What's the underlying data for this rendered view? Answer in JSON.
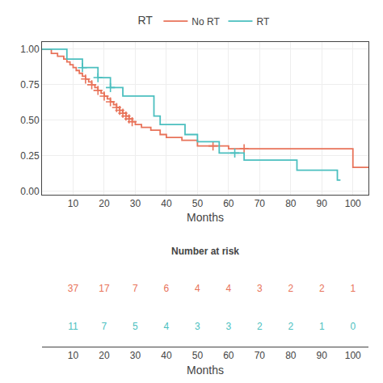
{
  "chart_data": {
    "type": "step",
    "xlabel": "Months",
    "legend_title": "RT",
    "xlim": [
      0,
      105
    ],
    "ylim": [
      -0.02,
      1.05
    ],
    "xticks": [
      10,
      20,
      30,
      40,
      50,
      60,
      70,
      80,
      90,
      100
    ],
    "yticks": [
      {
        "value": 0,
        "label": "0.00"
      },
      0.25,
      {
        "value": 0.5,
        "label": "0.50"
      },
      0.75,
      {
        "value": 1,
        "label": "1.00"
      }
    ],
    "grid": true,
    "series": [
      {
        "name": "No RT",
        "color": "#E8735A",
        "marker": "cross",
        "x": [
          0,
          3,
          5,
          7,
          8,
          9,
          10,
          11,
          12,
          13,
          14,
          15,
          16,
          17,
          18,
          19,
          20,
          21,
          22,
          23,
          24,
          25,
          26,
          27,
          28,
          29,
          30,
          32,
          35,
          38,
          40,
          45,
          50,
          60,
          70,
          95,
          100,
          105
        ],
        "values": [
          1.0,
          0.97,
          0.95,
          0.93,
          0.91,
          0.89,
          0.87,
          0.85,
          0.83,
          0.81,
          0.79,
          0.77,
          0.75,
          0.73,
          0.71,
          0.69,
          0.67,
          0.65,
          0.63,
          0.61,
          0.59,
          0.57,
          0.55,
          0.53,
          0.51,
          0.49,
          0.47,
          0.45,
          0.43,
          0.4,
          0.38,
          0.36,
          0.32,
          0.3,
          0.3,
          0.3,
          0.17,
          0.17
        ],
        "censor_x": [
          14,
          16,
          18,
          20,
          22,
          24,
          25,
          26,
          27,
          28,
          29,
          55,
          65
        ],
        "censor_values": [
          0.79,
          0.75,
          0.71,
          0.67,
          0.63,
          0.59,
          0.57,
          0.55,
          0.53,
          0.51,
          0.49,
          0.32,
          0.3
        ]
      },
      {
        "name": "RT",
        "color": "#4BBFBF",
        "marker": "cross",
        "x": [
          0,
          8,
          13,
          18,
          22,
          26,
          36,
          38,
          46,
          50,
          57,
          65,
          82,
          95,
          96
        ],
        "values": [
          1.0,
          0.93,
          0.87,
          0.8,
          0.73,
          0.67,
          0.53,
          0.47,
          0.4,
          0.35,
          0.27,
          0.22,
          0.15,
          0.08,
          0.08
        ],
        "censor_x": [
          13,
          18,
          22,
          62
        ],
        "censor_values": [
          0.87,
          0.8,
          0.73,
          0.27
        ]
      }
    ],
    "risk_table": {
      "title": "Number at risk",
      "xlabel": "Months",
      "x": [
        10,
        20,
        30,
        40,
        50,
        60,
        70,
        80,
        90,
        100
      ],
      "rows": [
        {
          "color": "#E8735A",
          "values": [
            37,
            17,
            7,
            6,
            4,
            4,
            3,
            2,
            2,
            1
          ]
        },
        {
          "color": "#4BBFBF",
          "values": [
            11,
            7,
            5,
            4,
            3,
            3,
            2,
            2,
            1,
            0
          ]
        }
      ]
    }
  }
}
